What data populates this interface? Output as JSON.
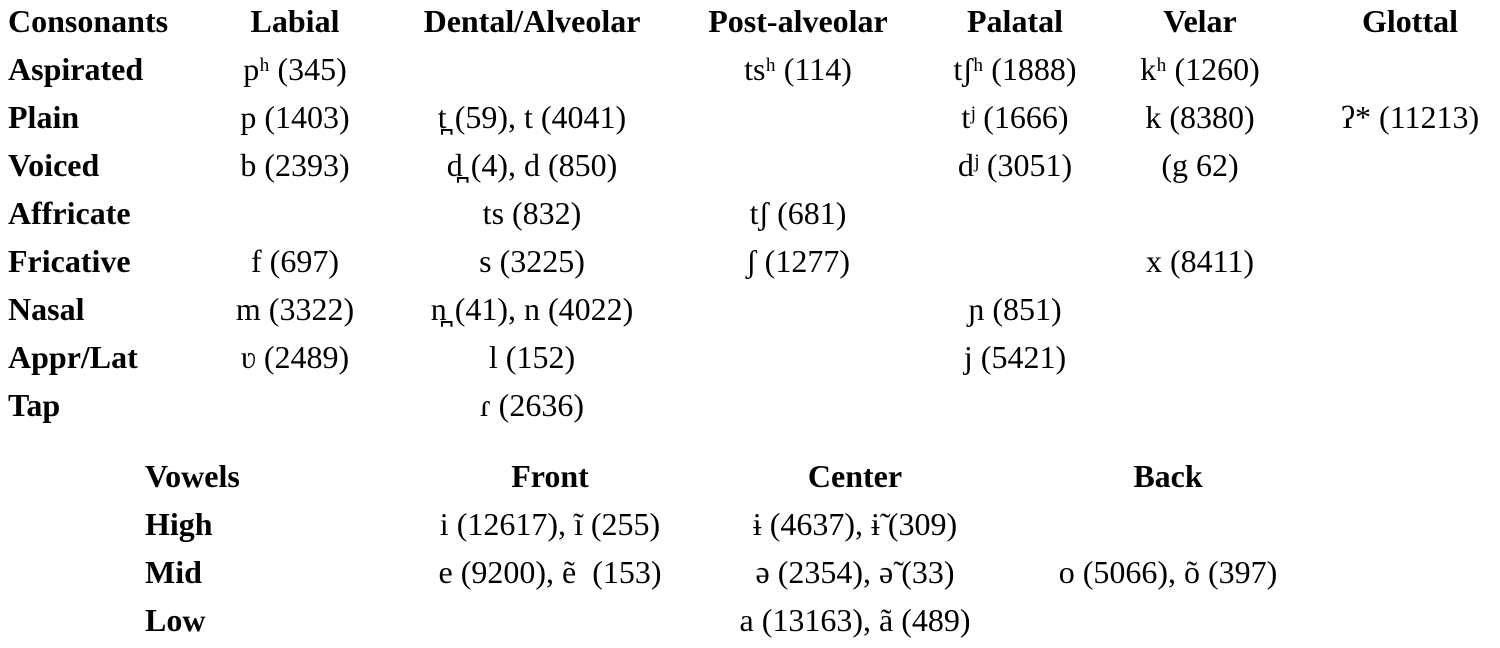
{
  "consonants": {
    "header": [
      "Consonants",
      "Labial",
      "Dental/Alveolar",
      "Post-alveolar",
      "Palatal",
      "Velar",
      "Glottal"
    ],
    "rows": [
      [
        "Aspirated",
        "pʰ (345)",
        null,
        "tsʰ (114)",
        "tʃʰ (1888)",
        "kʰ (1260)",
        null
      ],
      [
        "Plain",
        "p (1403)",
        "t̪ (59), t (4041)",
        null,
        "tʲ (1666)",
        "k (8380)",
        "ʔ* (11213)"
      ],
      [
        "Voiced",
        "b (2393)",
        "d̪ (4), d (850)",
        null,
        "dʲ (3051)",
        "(g 62)",
        null
      ],
      [
        "Affricate",
        null,
        "ts (832)",
        "tʃ (681)",
        null,
        null,
        null
      ],
      [
        "Fricative",
        "f (697)",
        "s (3225)",
        "ʃ (1277)",
        null,
        "x (8411)",
        null
      ],
      [
        "Nasal",
        "m (3322)",
        "n̪ (41), n (4022)",
        null,
        "ɲ (851)",
        null,
        null
      ],
      [
        "Appr/Lat",
        "ʋ (2489)",
        "l (152)",
        null,
        "j (5421)",
        null,
        null
      ],
      [
        "Tap",
        null,
        "ɾ (2636)",
        null,
        null,
        null,
        null
      ]
    ]
  },
  "vowels": {
    "header": [
      "Vowels",
      "Front",
      "Center",
      "Back"
    ],
    "rows": [
      [
        "High",
        "i (12617), ĩ (255)",
        "ɨ (4637), ɨ̃ (309)",
        null
      ],
      [
        "Mid",
        "e (9200), ẽ  (153)",
        "ə (2354), ə̃ (33)",
        "o (5066), õ (397)"
      ],
      [
        "Low",
        null,
        "a (13163), ã (489)",
        null
      ]
    ]
  }
}
